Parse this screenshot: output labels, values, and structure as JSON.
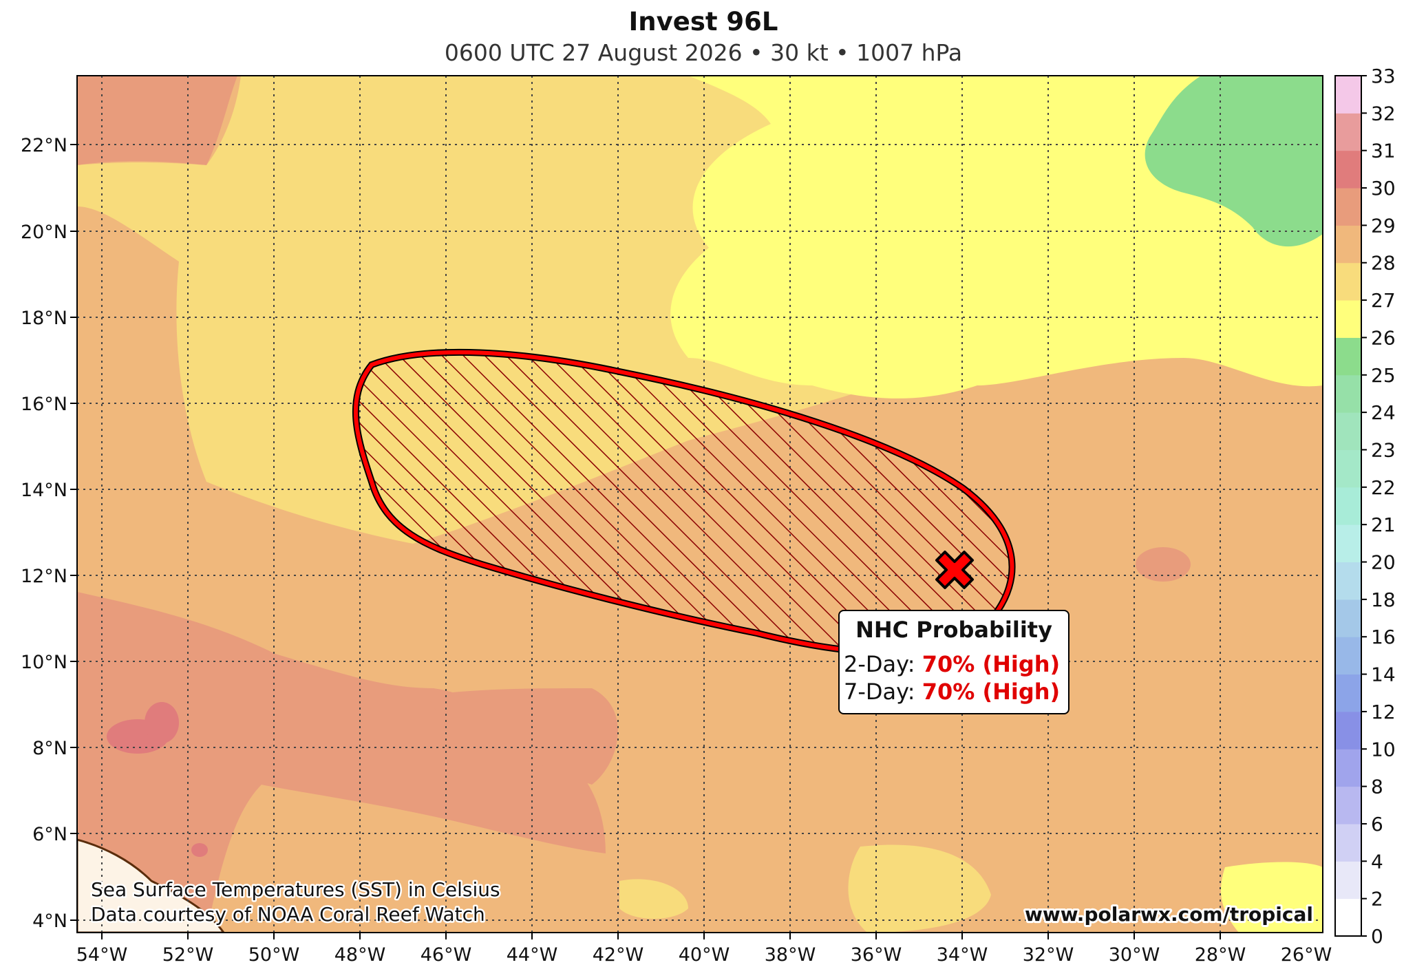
{
  "title": "Invest 96L",
  "subtitle": "0600 UTC 27 August 2026 • 30 kt • 1007 hPa",
  "map": {
    "lon_range": [
      -54.5,
      -25.5
    ],
    "lat_range": [
      3.7,
      23.6
    ],
    "lon_ticks": [
      "54°W",
      "52°W",
      "50°W",
      "48°W",
      "46°W",
      "44°W",
      "42°W",
      "40°W",
      "38°W",
      "36°W",
      "34°W",
      "32°W",
      "30°W",
      "28°W",
      "26°W"
    ],
    "lat_ticks": [
      "4°N",
      "6°N",
      "8°N",
      "10°N",
      "12°N",
      "14°N",
      "16°N",
      "18°N",
      "20°N",
      "22°N"
    ]
  },
  "storm_center": {
    "lon": -34.3,
    "lat": 12.2,
    "marker": "x-marker-icon"
  },
  "probability_box": {
    "title": "NHC Probability",
    "two_day_label": "2-Day:",
    "two_day_value": "70% (High)",
    "seven_day_label": "7-Day:",
    "seven_day_value": "70% (High)"
  },
  "colorbar": {
    "labels": [
      "0",
      "2",
      "4",
      "6",
      "8",
      "10",
      "12",
      "14",
      "16",
      "18",
      "20",
      "21",
      "22",
      "23",
      "24",
      "25",
      "26",
      "27",
      "28",
      "29",
      "30",
      "31",
      "32",
      "33"
    ],
    "colors": [
      "#ffffff",
      "#e8e8f8",
      "#d0d0f4",
      "#b8b8f0",
      "#a0a4ec",
      "#8890e6",
      "#8ca4e8",
      "#98b8e8",
      "#a4c8e8",
      "#b4dcec",
      "#b8eee8",
      "#a8ecd8",
      "#a4e8c8",
      "#a0e4bc",
      "#96e0a8",
      "#8cdc8c",
      "#ffff7c",
      "#f8dc7c",
      "#f0b87c",
      "#e89c7c",
      "#e07c7c",
      "#e89c9c",
      "#f4c8e8"
    ]
  },
  "footer": {
    "sst_note": "Sea Surface Temperatures (SST) in Celsius",
    "data_note": "Data courtesy of NOAA Coral Reef Watch",
    "website": "www.polarwx.com/tropical"
  },
  "colors": {
    "outline_red": "#ff0000",
    "hatch": "#8b0000",
    "high_text": "#e00000"
  }
}
